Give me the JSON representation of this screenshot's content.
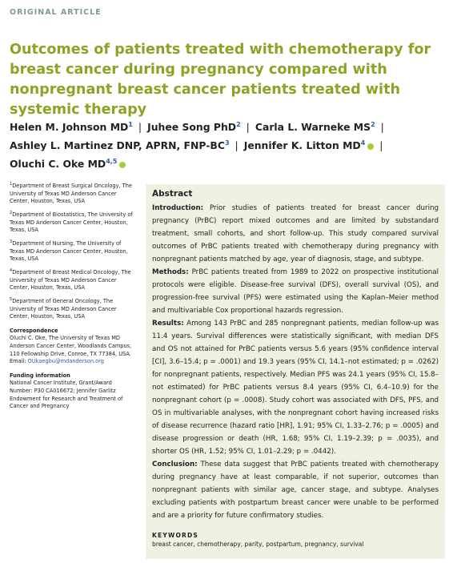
{
  "header": {
    "label": "ORIGINAL ARTICLE"
  },
  "title": "Outcomes of patients treated with chemotherapy for breast cancer during pregnancy compared with nonpregnant breast cancer patients treated with systemic therapy",
  "separator": "|",
  "authors": [
    {
      "name": "Helen M. Johnson MD",
      "sup": "1"
    },
    {
      "name": "Juhee Song PhD",
      "sup": "2"
    },
    {
      "name": "Carla L. Warneke MS",
      "sup": "2"
    },
    {
      "name": "Ashley L. Martinez DNP, APRN, FNP-BC",
      "sup": "3"
    },
    {
      "name": "Jennifer K. Litton MD",
      "sup": "4"
    },
    {
      "name": "Oluchi C. Oke MD",
      "sup": "4,5"
    }
  ],
  "affiliations": [
    {
      "sup": "1",
      "text": "Department of Breast Surgical Oncology, The University of Texas MD Anderson Cancer Center, Houston, Texas, USA"
    },
    {
      "sup": "2",
      "text": "Department of Biostatistics, The University of Texas MD Anderson Cancer Center, Houston, Texas, USA"
    },
    {
      "sup": "3",
      "text": "Department of Nursing, The University of Texas MD Anderson Cancer Center, Houston, Texas, USA"
    },
    {
      "sup": "4",
      "text": "Department of Breast Medical Oncology, The University of Texas MD Anderson Cancer Center, Houston, Texas, USA"
    },
    {
      "sup": "5",
      "text": "Department of General Oncology, The University of Texas MD Anderson Cancer Center, Houston, Texas, USA"
    }
  ],
  "correspondence": {
    "heading": "Correspondence",
    "text": "Oluchi C. Oke, The University of Texas MD Anderson Cancer Center, Woodlands Campus, 110 Fellowship Drive, Conroe, TX 77384, USA.",
    "email_label": "Email:",
    "email": "OUkaegbu@mdanderson.org"
  },
  "funding": {
    "heading": "Funding information",
    "text": "National Cancer Institute, Grant/Award Number: P30 CA016672; Jennifer Garlitz Endowment for Research and Treatment of Cancer and Pregnancy"
  },
  "abstract": {
    "heading": "Abstract",
    "sections": [
      {
        "label": "Introduction:",
        "text": "Prior studies of patients treated for breast cancer during pregnancy (PrBC) report mixed outcomes and are limited by substandard treatment, small cohorts, and short follow-up. This study compared survival outcomes of PrBC patients treated with chemotherapy during pregnancy with nonpregnant patients matched by age, year of diagnosis, stage, and subtype."
      },
      {
        "label": "Methods:",
        "text": "PrBC patients treated from 1989 to 2022 on prospective institutional protocols were eligible. Disease-free survival (DFS), overall survival (OS), and progression-free survival (PFS) were estimated using the Kaplan–Meier method and multivariable Cox proportional hazards regression."
      },
      {
        "label": "Results:",
        "text": "Among 143 PrBC and 285 nonpregnant patients, median follow-up was 11.4 years. Survival differences were statistically significant, with median DFS and OS not attained for PrBC patients versus 5.6 years (95% confidence interval [CI], 3.6–15.4; p = .0001) and 19.3 years (95% CI, 14.1–not estimated; p = .0262) for nonpregnant patients, respectively. Median PFS was 24.1 years (95% CI, 15.8–not estimated) for PrBC patients versus 8.4 years (95% CI, 6.4–10.9) for the nonpregnant cohort (p = .0008). Study cohort was associated with DFS, PFS, and OS in multivariable analyses, with the nonpregnant cohort having increased risks of disease recurrence (hazard ratio [HR], 1.91; 95% CI, 1.33–2.76; p = .0005) and disease progression or death (HR, 1.68; 95% CI, 1.19–2.39; p = .0035), and shorter OS (HR, 1.52; 95% CI, 1.01–2.29; p = .0442)."
      },
      {
        "label": "Conclusion:",
        "text": "These data suggest that PrBC patients treated with chemotherapy during pregnancy have at least comparable, if not superior, outcomes than nonpregnant patients with similar age, cancer stage, and subtype. Analyses excluding patients with postpartum breast cancer were unable to be performed and are a priority for future confirmatory studies."
      }
    ]
  },
  "keywords": {
    "heading": "KEYWORDS",
    "text": "breast cancer, chemotherapy, parity, postpartum, pregnancy, survival"
  }
}
